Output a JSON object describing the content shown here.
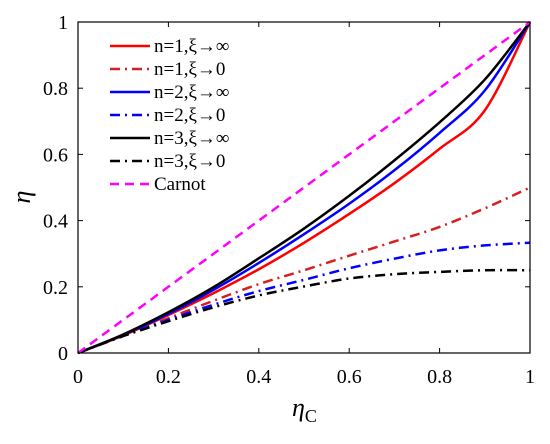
{
  "chart_data": {
    "type": "line",
    "xlabel": "η",
    "xlabel_sub": "C",
    "ylabel": "η",
    "xlim": [
      0,
      1
    ],
    "ylim": [
      0,
      1
    ],
    "xticks": [
      "0",
      "0.2",
      "0.4",
      "0.6",
      "0.8",
      "1"
    ],
    "yticks": [
      "0",
      "0.2",
      "0.4",
      "0.6",
      "0.8",
      "1"
    ],
    "grid": false,
    "legend_position": "top-left",
    "x": [
      0,
      0.1,
      0.2,
      0.3,
      0.4,
      0.5,
      0.6,
      0.7,
      0.8,
      0.9,
      1.0
    ],
    "series": [
      {
        "name": "n=1,ξ→∞",
        "color": "#ff0000",
        "dash": "solid",
        "values": [
          0,
          0.053,
          0.115,
          0.181,
          0.253,
          0.333,
          0.42,
          0.513,
          0.617,
          0.733,
          1.0
        ]
      },
      {
        "name": "n=1,ξ→0",
        "color": "#d62020",
        "dash": "dashdot",
        "values": [
          0,
          0.052,
          0.105,
          0.158,
          0.208,
          0.25,
          0.294,
          0.337,
          0.381,
          0.437,
          0.5
        ]
      },
      {
        "name": "n=2,ξ→∞",
        "color": "#0000ff",
        "dash": "solid",
        "values": [
          0,
          0.055,
          0.118,
          0.191,
          0.272,
          0.359,
          0.451,
          0.552,
          0.665,
          0.793,
          1.0
        ]
      },
      {
        "name": "n=2,ξ→0",
        "color": "#0000ff",
        "dash": "dashdot",
        "values": [
          0,
          0.052,
          0.1,
          0.146,
          0.187,
          0.221,
          0.256,
          0.285,
          0.31,
          0.325,
          0.333
        ]
      },
      {
        "name": "n=3,ξ→∞",
        "color": "#000000",
        "dash": "solid",
        "values": [
          0,
          0.056,
          0.123,
          0.199,
          0.286,
          0.376,
          0.475,
          0.582,
          0.697,
          0.826,
          1.0
        ]
      },
      {
        "name": "n=3,ξ→0",
        "color": "#000000",
        "dash": "dashdot",
        "values": [
          0,
          0.051,
          0.096,
          0.138,
          0.174,
          0.201,
          0.225,
          0.238,
          0.245,
          0.25,
          0.25
        ]
      },
      {
        "name": "Carnot",
        "color": "#ff00ff",
        "dash": "dashed",
        "values": [
          0,
          0.1,
          0.2,
          0.3,
          0.4,
          0.5,
          0.6,
          0.7,
          0.8,
          0.9,
          1.0
        ]
      }
    ]
  }
}
